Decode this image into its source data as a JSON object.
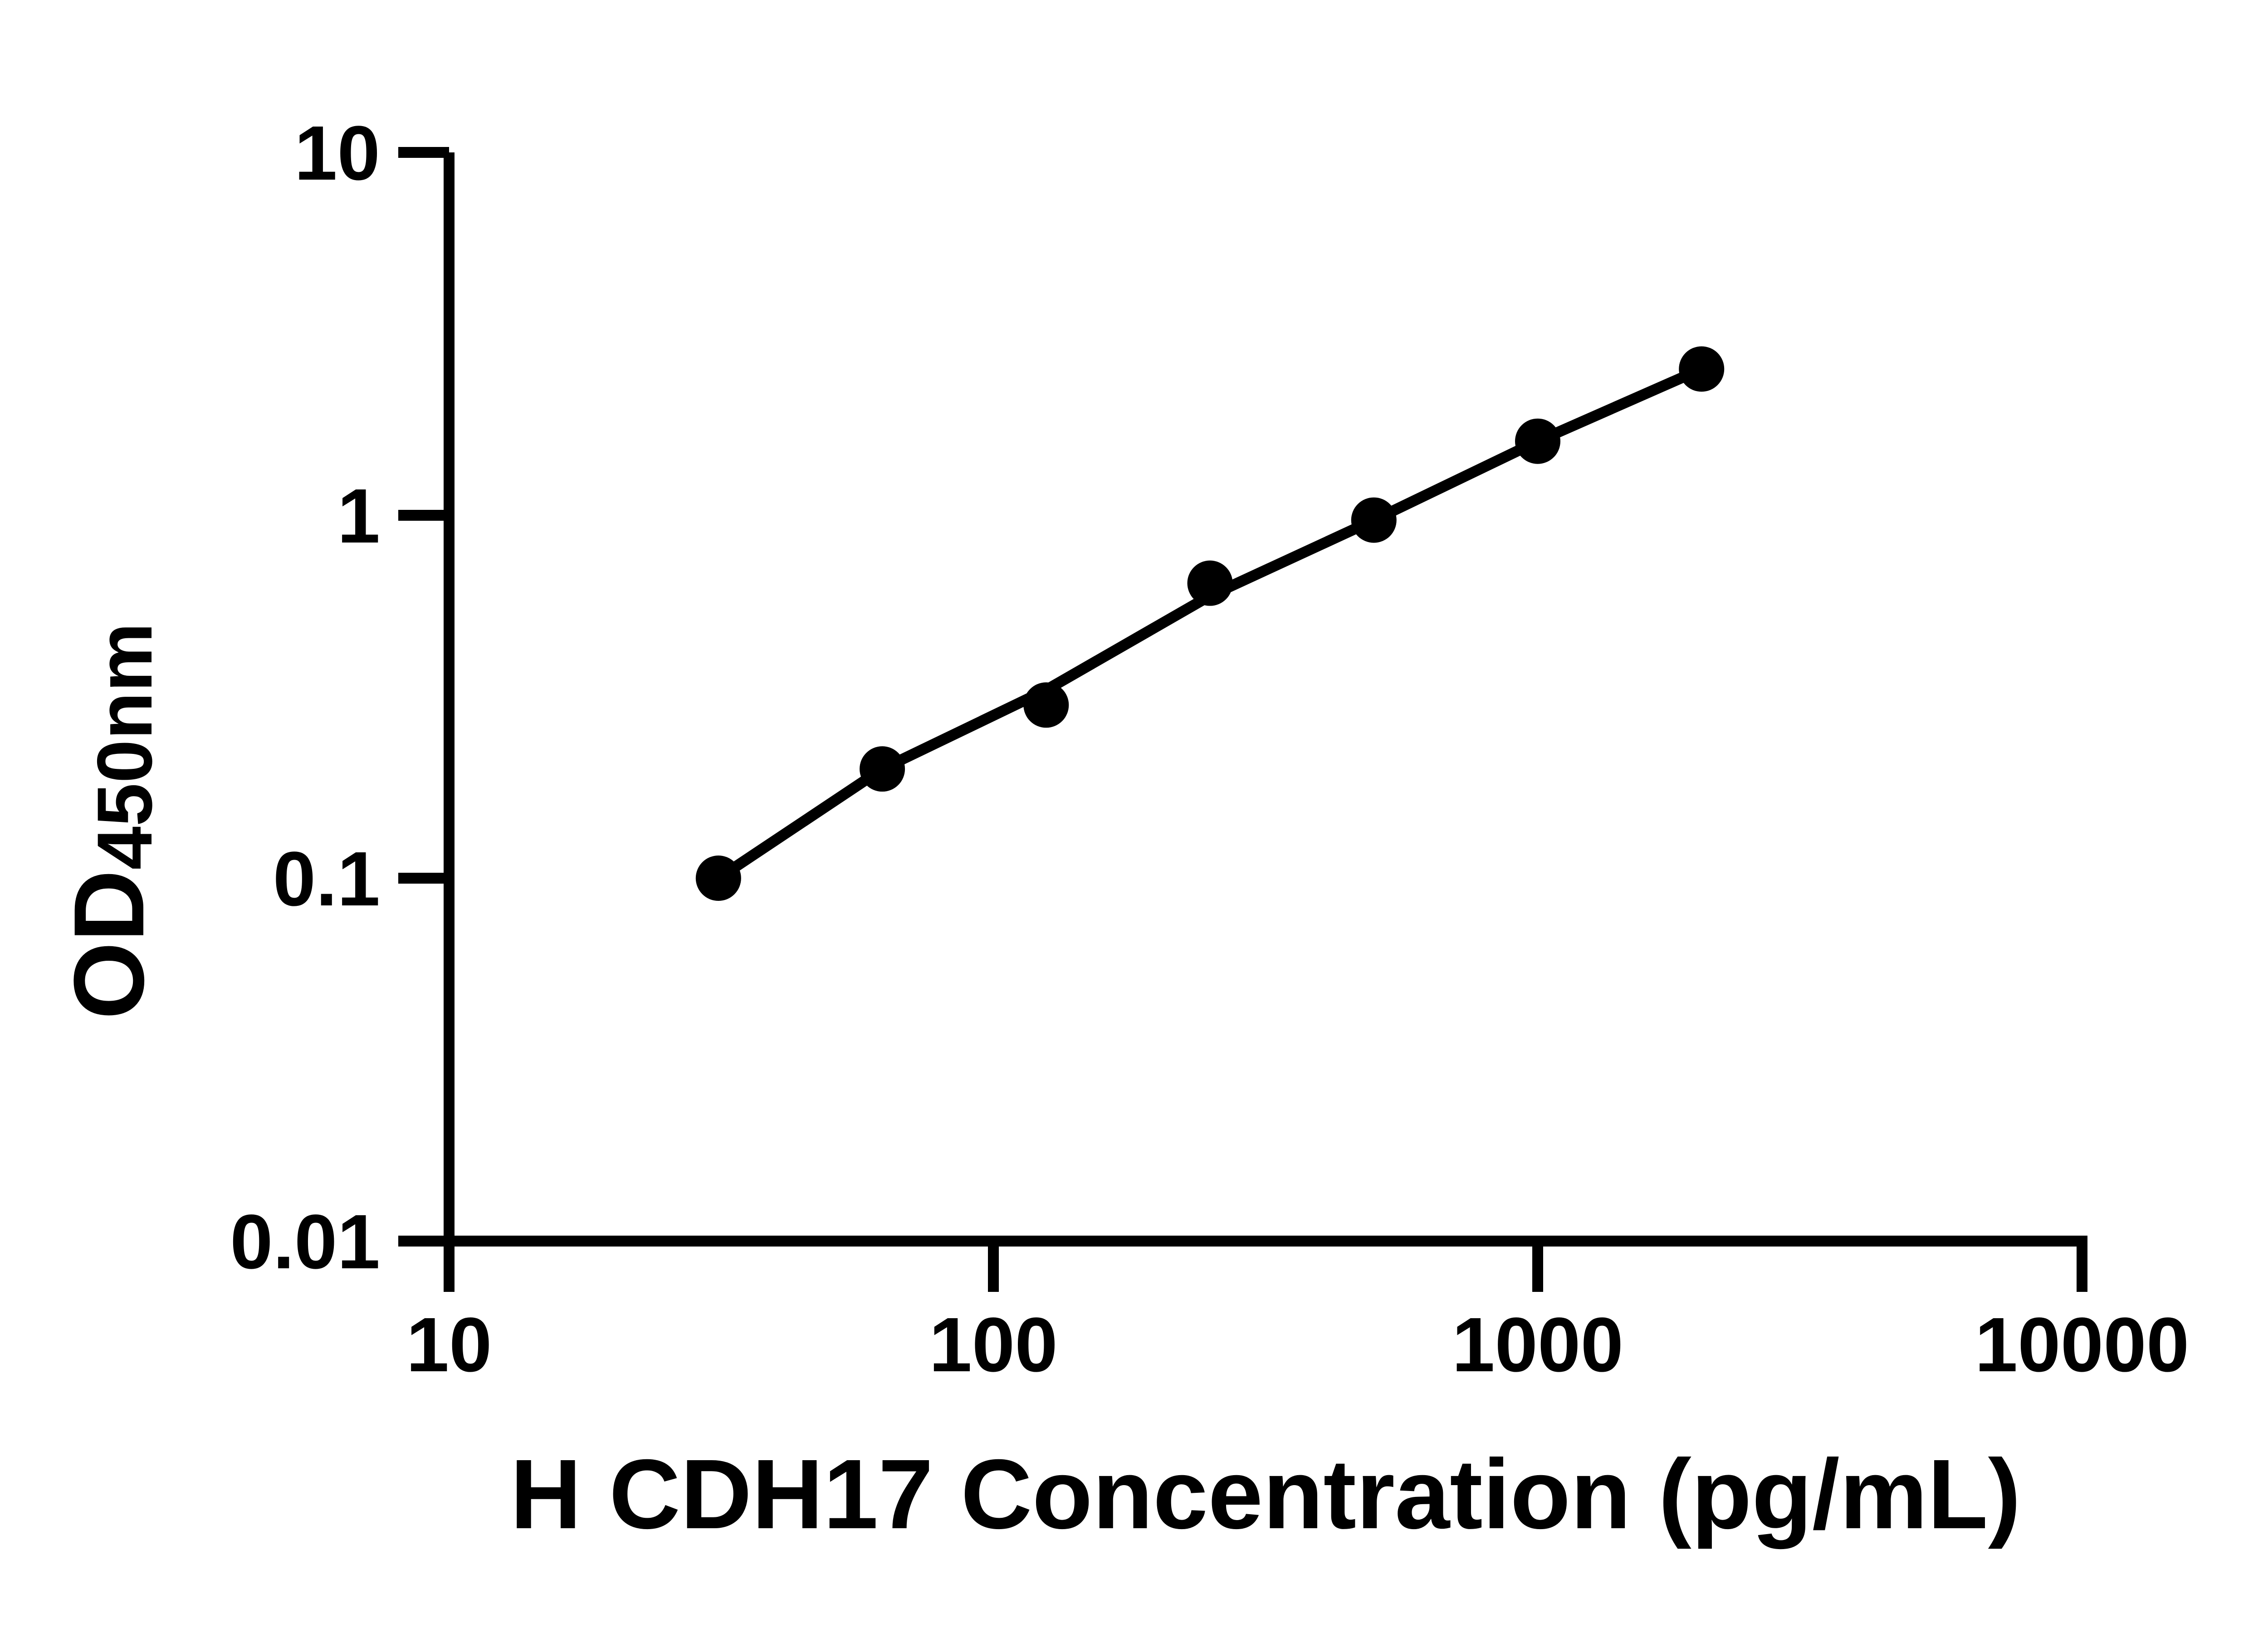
{
  "chart_data": {
    "type": "scatter",
    "subtype": "standard-curve-with-fit-line",
    "title": "",
    "xlabel": "H CDH17 Concentration (pg/mL)",
    "ylabel_main": "OD",
    "ylabel_sub": "450nm",
    "x": [
      31.25,
      62.5,
      125,
      250,
      500,
      1000,
      2000
    ],
    "od": [
      0.1,
      0.2,
      0.3,
      0.65,
      0.97,
      1.6,
      2.53
    ],
    "trend_od": [
      0.1,
      0.2,
      0.33,
      0.6,
      0.97,
      1.6,
      2.53
    ],
    "x_ticks": [
      "10",
      "100",
      "1000",
      "10000"
    ],
    "x_tick_values": [
      10,
      100,
      1000,
      10000
    ],
    "y_ticks": [
      "10",
      "1",
      "0.1",
      "0.01"
    ],
    "y_tick_values": [
      10,
      1,
      0.1,
      0.01
    ],
    "xlim": [
      10,
      10000
    ],
    "ylim": [
      0.01,
      10
    ],
    "x_scale": "log",
    "y_scale": "log",
    "grid": false,
    "legend_position": "none",
    "marker_color": "#000000",
    "line_color": "#000000",
    "axis_color": "#000000",
    "background": "#ffffff"
  }
}
